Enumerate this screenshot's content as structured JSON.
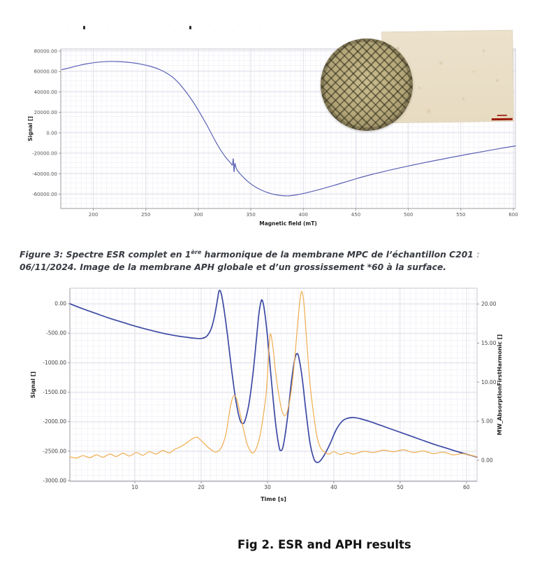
{
  "page": {
    "ghost_title": {
      "dots": "· · · · · · · · · · · · · · · · · · · · · · ·"
    },
    "caption_fig3": {
      "line1_pre": "Figure 3: Spectre ESR complet en 1",
      "line1_sup": "ère",
      "line1_post": " harmonique de la membrane MPC de l’échantillon C201",
      "line1_tail": " :",
      "line2": "06/11/2024. Image de la membrane APH globale et d’un grossissement *60 à la surface."
    },
    "caption_fig2": "Fig 2. ESR and APH results"
  },
  "colors": {
    "esr_line": "#5a62b5",
    "signal_line": "#3c49a3",
    "mw_line": "#f0ad4e",
    "scalebar": "#9c1a0a"
  },
  "chart_data": [
    {
      "type": "line",
      "xlabel": "Magnetic field (mT)",
      "ylabel": "Signal []",
      "xlim": [
        169,
        602
      ],
      "ylim": [
        -74000,
        82000
      ],
      "x_ticks": [
        200,
        250,
        300,
        350,
        400,
        450,
        500,
        550,
        600
      ],
      "x_tick_labels": [
        "200",
        "250",
        "300",
        "350",
        "400",
        "450",
        "500",
        "550",
        "600"
      ],
      "y_ticks": [
        80000,
        60000,
        40000,
        20000,
        0,
        -20000,
        -40000,
        -60000
      ],
      "y_tick_labels": [
        "80000.00",
        "60000.00",
        "40000.00",
        "20000.00",
        "0.00",
        "-20000.00",
        "-40000.00",
        "-60000.00"
      ],
      "grid": true,
      "legend": null,
      "series": [
        {
          "name": "ESR spectrum 1st harmonic",
          "color": "#5a62b5",
          "width": 1.2,
          "points": [
            [
              170,
              61800
            ],
            [
              176,
              63200
            ],
            [
              182,
              64800
            ],
            [
              188,
              66300
            ],
            [
              195,
              67700
            ],
            [
              202,
              68800
            ],
            [
              209,
              69500
            ],
            [
              216,
              69800
            ],
            [
              223,
              69700
            ],
            [
              230,
              69300
            ],
            [
              237,
              68500
            ],
            [
              244,
              67400
            ],
            [
              251,
              65900
            ],
            [
              258,
              63900
            ],
            [
              264,
              61500
            ],
            [
              270,
              58300
            ],
            [
              276,
              54000
            ],
            [
              281,
              49000
            ],
            [
              286,
              43000
            ],
            [
              291,
              36200
            ],
            [
              296,
              28800
            ],
            [
              300,
              22000
            ],
            [
              304,
              15000
            ],
            [
              308,
              7800
            ],
            [
              311,
              2000
            ],
            [
              314,
              -3800
            ],
            [
              317,
              -9500
            ],
            [
              320,
              -14800
            ],
            [
              323,
              -19500
            ],
            [
              326,
              -23800
            ],
            [
              329,
              -27500
            ],
            [
              331,
              -29800
            ],
            [
              332.5,
              -31500
            ],
            [
              333.3,
              -25500
            ],
            [
              334,
              -38000
            ],
            [
              334.8,
              -30000
            ],
            [
              336,
              -34500
            ],
            [
              338,
              -37800
            ],
            [
              341,
              -41500
            ],
            [
              345,
              -45600
            ],
            [
              350,
              -49900
            ],
            [
              356,
              -53900
            ],
            [
              362,
              -56900
            ],
            [
              368,
              -59100
            ],
            [
              374,
              -60600
            ],
            [
              380,
              -61400
            ],
            [
              386,
              -61600
            ],
            [
              393,
              -60700
            ],
            [
              402,
              -58900
            ],
            [
              411,
              -56600
            ],
            [
              420,
              -54100
            ],
            [
              429,
              -51500
            ],
            [
              438,
              -48700
            ],
            [
              447,
              -45900
            ],
            [
              456,
              -43200
            ],
            [
              466,
              -40500
            ],
            [
              476,
              -38000
            ],
            [
              487,
              -35400
            ],
            [
              498,
              -32900
            ],
            [
              510,
              -30300
            ],
            [
              522,
              -27800
            ],
            [
              534,
              -25400
            ],
            [
              546,
              -23000
            ],
            [
              558,
              -20700
            ],
            [
              570,
              -18500
            ],
            [
              582,
              -16300
            ],
            [
              592,
              -14500
            ],
            [
              602,
              -12800
            ]
          ]
        }
      ]
    },
    {
      "type": "line",
      "xlabel": "Time [s]",
      "ylabel": "Signal []",
      "ylabel_right": "MW_AbsorptionFirstHarmonic []",
      "xlim": [
        0.2,
        61.6
      ],
      "ylim": [
        -3012,
        262
      ],
      "ylim_right": [
        -2.69,
        22.02
      ],
      "x_ticks": [
        10,
        20,
        30,
        40,
        50,
        60
      ],
      "x_tick_labels": [
        "10",
        "20",
        "30",
        "40",
        "50",
        "60"
      ],
      "y_ticks": [
        0,
        -500,
        -1000,
        -1500,
        -2000,
        -2500,
        -3000
      ],
      "y_tick_labels": [
        "0.00",
        "-500.00",
        "-1000.00",
        "-1500.00",
        "-2000.00",
        "-2500.00",
        "-3000.00"
      ],
      "y_ticks_right": [
        20,
        15,
        10,
        5,
        0
      ],
      "y_tick_labels_right": [
        "20.00",
        "15.00",
        "10.00",
        "5.00",
        "0.00"
      ],
      "grid": true,
      "legend": null,
      "series": [
        {
          "name": "Signal",
          "axis": "left",
          "color": "#3c49a3",
          "width": 1.7,
          "points": [
            [
              0.2,
              0
            ],
            [
              2,
              -80
            ],
            [
              4,
              -160
            ],
            [
              6,
              -240
            ],
            [
              8,
              -310
            ],
            [
              10,
              -380
            ],
            [
              12,
              -440
            ],
            [
              14,
              -495
            ],
            [
              16,
              -540
            ],
            [
              17.5,
              -565
            ],
            [
              19,
              -585
            ],
            [
              20,
              -590
            ],
            [
              20.8,
              -555
            ],
            [
              21.5,
              -430
            ],
            [
              22,
              -220
            ],
            [
              22.4,
              30
            ],
            [
              22.7,
              215
            ],
            [
              23,
              180
            ],
            [
              23.4,
              -60
            ],
            [
              24,
              -560
            ],
            [
              24.6,
              -1130
            ],
            [
              25.2,
              -1620
            ],
            [
              25.8,
              -1950
            ],
            [
              26.2,
              -2030
            ],
            [
              26.6,
              -1985
            ],
            [
              27.2,
              -1700
            ],
            [
              27.8,
              -1200
            ],
            [
              28.3,
              -640
            ],
            [
              28.7,
              -180
            ],
            [
              29,
              25
            ],
            [
              29.2,
              60
            ],
            [
              29.5,
              -80
            ],
            [
              30,
              -560
            ],
            [
              30.6,
              -1320
            ],
            [
              31.2,
              -2000
            ],
            [
              31.7,
              -2400
            ],
            [
              32,
              -2490
            ],
            [
              32.4,
              -2400
            ],
            [
              33,
              -1950
            ],
            [
              33.6,
              -1330
            ],
            [
              34.1,
              -950
            ],
            [
              34.4,
              -850
            ],
            [
              34.7,
              -900
            ],
            [
              35.2,
              -1230
            ],
            [
              35.8,
              -1820
            ],
            [
              36.4,
              -2350
            ],
            [
              37,
              -2630
            ],
            [
              37.5,
              -2690
            ],
            [
              38,
              -2660
            ],
            [
              38.7,
              -2540
            ],
            [
              39.5,
              -2360
            ],
            [
              40.3,
              -2150
            ],
            [
              41.2,
              -2000
            ],
            [
              42,
              -1945
            ],
            [
              43,
              -1930
            ],
            [
              44,
              -1950
            ],
            [
              45.5,
              -2000
            ],
            [
              47,
              -2060
            ],
            [
              49,
              -2140
            ],
            [
              51,
              -2220
            ],
            [
              53,
              -2300
            ],
            [
              55,
              -2380
            ],
            [
              57,
              -2450
            ],
            [
              59,
              -2520
            ],
            [
              61.6,
              -2600
            ]
          ]
        },
        {
          "name": "MW_AbsorptionFirstHarmonic",
          "axis": "right",
          "color": "#f0ad4e",
          "width": 1.2,
          "points": [
            [
              0.2,
              0.45
            ],
            [
              1.2,
              0.3
            ],
            [
              2.2,
              0.6
            ],
            [
              3.2,
              0.35
            ],
            [
              4.2,
              0.7
            ],
            [
              5.2,
              0.4
            ],
            [
              6.2,
              0.8
            ],
            [
              7.2,
              0.5
            ],
            [
              8.2,
              0.9
            ],
            [
              9.2,
              0.55
            ],
            [
              10.2,
              1.0
            ],
            [
              11.2,
              0.65
            ],
            [
              12.2,
              1.1
            ],
            [
              13.2,
              0.8
            ],
            [
              14.2,
              1.25
            ],
            [
              15.2,
              0.95
            ],
            [
              16,
              1.4
            ],
            [
              16.8,
              1.7
            ],
            [
              17.6,
              2.1
            ],
            [
              18.4,
              2.6
            ],
            [
              19,
              2.9
            ],
            [
              19.4,
              2.95
            ],
            [
              19.8,
              2.7
            ],
            [
              20.4,
              2.2
            ],
            [
              21,
              1.7
            ],
            [
              21.6,
              1.3
            ],
            [
              22.2,
              1.05
            ],
            [
              22.8,
              1.35
            ],
            [
              23.3,
              2.1
            ],
            [
              23.8,
              3.6
            ],
            [
              24.2,
              5.8
            ],
            [
              24.6,
              7.6
            ],
            [
              25,
              8.3
            ],
            [
              25.4,
              7.7
            ],
            [
              25.9,
              5.9
            ],
            [
              26.4,
              3.9
            ],
            [
              26.9,
              2.2
            ],
            [
              27.4,
              1.2
            ],
            [
              27.8,
              0.95
            ],
            [
              28.3,
              1.5
            ],
            [
              28.8,
              2.9
            ],
            [
              29.3,
              5.3
            ],
            [
              29.8,
              8.6
            ],
            [
              30.1,
              12.4
            ],
            [
              30.4,
              16.1
            ],
            [
              30.8,
              14.6
            ],
            [
              31.2,
              11.5
            ],
            [
              31.7,
              8.4
            ],
            [
              32.2,
              6.3
            ],
            [
              32.6,
              5.7
            ],
            [
              33,
              6.3
            ],
            [
              33.5,
              8.4
            ],
            [
              34,
              12.0
            ],
            [
              34.5,
              17.0
            ],
            [
              34.9,
              20.5
            ],
            [
              35.2,
              21.6
            ],
            [
              35.5,
              20.0
            ],
            [
              35.9,
              15.5
            ],
            [
              36.4,
              9.9
            ],
            [
              37,
              5.6
            ],
            [
              37.5,
              2.9
            ],
            [
              38,
              1.6
            ],
            [
              38.6,
              1.05
            ],
            [
              39.3,
              0.8
            ],
            [
              40,
              1.1
            ],
            [
              41,
              0.75
            ],
            [
              42,
              1.0
            ],
            [
              43,
              0.8
            ],
            [
              44.5,
              1.15
            ],
            [
              46,
              1.0
            ],
            [
              47.5,
              1.3
            ],
            [
              49,
              1.1
            ],
            [
              50.5,
              1.35
            ],
            [
              52,
              1.0
            ],
            [
              53.5,
              1.2
            ],
            [
              55,
              0.85
            ],
            [
              56.5,
              1.05
            ],
            [
              58,
              0.7
            ],
            [
              59.5,
              0.85
            ],
            [
              61.6,
              0.45
            ]
          ]
        }
      ]
    }
  ]
}
